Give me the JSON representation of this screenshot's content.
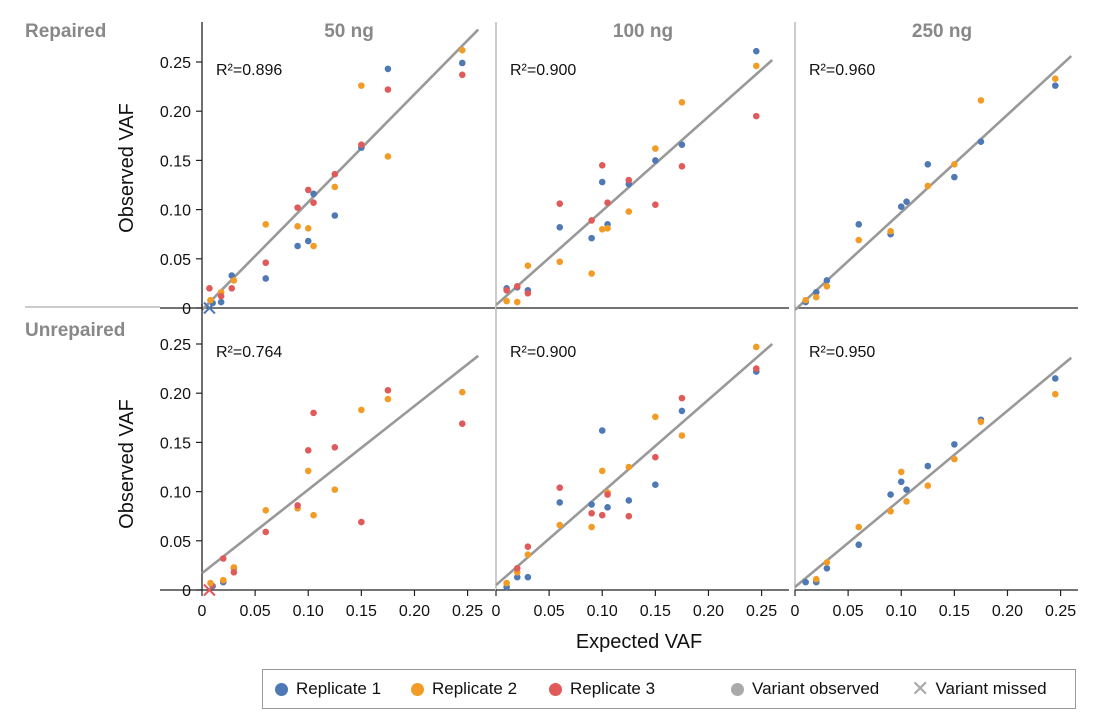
{
  "figure": {
    "row_labels": [
      "Repaired",
      "Unrepaired"
    ],
    "ylabel": "Observed VAF",
    "xlabel": "Expected VAF"
  },
  "colors": {
    "replicate_1": "#4e79b5",
    "replicate_2": "#f39c25",
    "replicate_3": "#e05a5a",
    "fit_line": "#999999",
    "row_label": "#888888",
    "panel_title": "#888888"
  },
  "legend": {
    "items": [
      {
        "label": "Replicate 1",
        "kind": "dot",
        "color": "#4e79b5",
        "icon": "circle-icon"
      },
      {
        "label": "Replicate 2",
        "kind": "dot",
        "color": "#f39c25",
        "icon": "circle-icon"
      },
      {
        "label": "Replicate 3",
        "kind": "dot",
        "color": "#e05a5a",
        "icon": "circle-icon"
      },
      {
        "label": "Variant observed",
        "kind": "dot",
        "color": "#aaaaaa",
        "icon": "circle-icon"
      },
      {
        "label": "Variant missed",
        "kind": "cross",
        "color": "#aaaaaa",
        "icon": "cross-icon"
      }
    ]
  },
  "chart_data": {
    "type": "scatter",
    "x_ticks": [
      "0",
      "0.05",
      "0.10",
      "0.15",
      "0.20",
      "0.25"
    ],
    "x_tick_values": [
      0,
      0.05,
      0.1,
      0.15,
      0.2,
      0.25
    ],
    "y_ticks": [
      "0",
      "0.05",
      "0.10",
      "0.15",
      "0.20",
      "0.25"
    ],
    "y_tick_values": [
      0,
      0.05,
      0.1,
      0.15,
      0.2,
      0.25
    ],
    "xlim": [
      0,
      0.265
    ],
    "ylim": [
      0,
      0.285
    ],
    "series_names": [
      "Replicate 1",
      "Replicate 2",
      "Replicate 3"
    ],
    "panels": [
      {
        "row": 0,
        "col": 0,
        "title": "50 ng",
        "r2_label": "R²=0.896",
        "fit": [
          [
            0,
            -0.002
          ],
          [
            0.26,
            0.283
          ]
        ],
        "missed": [
          {
            "x": 0.007,
            "y": 0.0,
            "color": "#4e79b5"
          }
        ],
        "points": [
          {
            "s": 0,
            "x": 0.01,
            "y": 0.005
          },
          {
            "s": 0,
            "x": 0.018,
            "y": 0.006
          },
          {
            "s": 0,
            "x": 0.028,
            "y": 0.033
          },
          {
            "s": 0,
            "x": 0.06,
            "y": 0.03
          },
          {
            "s": 0,
            "x": 0.09,
            "y": 0.063
          },
          {
            "s": 0,
            "x": 0.1,
            "y": 0.068
          },
          {
            "s": 0,
            "x": 0.105,
            "y": 0.116
          },
          {
            "s": 0,
            "x": 0.125,
            "y": 0.094
          },
          {
            "s": 0,
            "x": 0.15,
            "y": 0.163
          },
          {
            "s": 0,
            "x": 0.175,
            "y": 0.243
          },
          {
            "s": 0,
            "x": 0.245,
            "y": 0.249
          },
          {
            "s": 1,
            "x": 0.008,
            "y": 0.008
          },
          {
            "s": 1,
            "x": 0.018,
            "y": 0.016
          },
          {
            "s": 1,
            "x": 0.03,
            "y": 0.028
          },
          {
            "s": 1,
            "x": 0.06,
            "y": 0.085
          },
          {
            "s": 1,
            "x": 0.09,
            "y": 0.083
          },
          {
            "s": 1,
            "x": 0.1,
            "y": 0.081
          },
          {
            "s": 1,
            "x": 0.105,
            "y": 0.063
          },
          {
            "s": 1,
            "x": 0.125,
            "y": 0.123
          },
          {
            "s": 1,
            "x": 0.15,
            "y": 0.226
          },
          {
            "s": 1,
            "x": 0.175,
            "y": 0.154
          },
          {
            "s": 1,
            "x": 0.245,
            "y": 0.262
          },
          {
            "s": 2,
            "x": 0.007,
            "y": 0.02
          },
          {
            "s": 2,
            "x": 0.018,
            "y": 0.012
          },
          {
            "s": 2,
            "x": 0.028,
            "y": 0.02
          },
          {
            "s": 2,
            "x": 0.06,
            "y": 0.046
          },
          {
            "s": 2,
            "x": 0.09,
            "y": 0.102
          },
          {
            "s": 2,
            "x": 0.1,
            "y": 0.12
          },
          {
            "s": 2,
            "x": 0.105,
            "y": 0.107
          },
          {
            "s": 2,
            "x": 0.125,
            "y": 0.136
          },
          {
            "s": 2,
            "x": 0.15,
            "y": 0.166
          },
          {
            "s": 2,
            "x": 0.175,
            "y": 0.222
          },
          {
            "s": 2,
            "x": 0.245,
            "y": 0.237
          }
        ]
      },
      {
        "row": 0,
        "col": 1,
        "title": "100 ng",
        "r2_label": "R²=0.900",
        "fit": [
          [
            0,
            0.003
          ],
          [
            0.26,
            0.252
          ]
        ],
        "missed": [],
        "points": [
          {
            "s": 0,
            "x": 0.01,
            "y": 0.02
          },
          {
            "s": 0,
            "x": 0.02,
            "y": 0.021
          },
          {
            "s": 0,
            "x": 0.03,
            "y": 0.018
          },
          {
            "s": 0,
            "x": 0.06,
            "y": 0.082
          },
          {
            "s": 0,
            "x": 0.09,
            "y": 0.071
          },
          {
            "s": 0,
            "x": 0.1,
            "y": 0.128
          },
          {
            "s": 0,
            "x": 0.105,
            "y": 0.085
          },
          {
            "s": 0,
            "x": 0.125,
            "y": 0.126
          },
          {
            "s": 0,
            "x": 0.15,
            "y": 0.15
          },
          {
            "s": 0,
            "x": 0.175,
            "y": 0.166
          },
          {
            "s": 0,
            "x": 0.245,
            "y": 0.261
          },
          {
            "s": 1,
            "x": 0.01,
            "y": 0.007
          },
          {
            "s": 1,
            "x": 0.02,
            "y": 0.006
          },
          {
            "s": 1,
            "x": 0.03,
            "y": 0.043
          },
          {
            "s": 1,
            "x": 0.06,
            "y": 0.047
          },
          {
            "s": 1,
            "x": 0.09,
            "y": 0.035
          },
          {
            "s": 1,
            "x": 0.1,
            "y": 0.08
          },
          {
            "s": 1,
            "x": 0.105,
            "y": 0.081
          },
          {
            "s": 1,
            "x": 0.125,
            "y": 0.098
          },
          {
            "s": 1,
            "x": 0.15,
            "y": 0.162
          },
          {
            "s": 1,
            "x": 0.175,
            "y": 0.209
          },
          {
            "s": 1,
            "x": 0.245,
            "y": 0.246
          },
          {
            "s": 2,
            "x": 0.01,
            "y": 0.018
          },
          {
            "s": 2,
            "x": 0.02,
            "y": 0.022
          },
          {
            "s": 2,
            "x": 0.03,
            "y": 0.015
          },
          {
            "s": 2,
            "x": 0.06,
            "y": 0.106
          },
          {
            "s": 2,
            "x": 0.09,
            "y": 0.089
          },
          {
            "s": 2,
            "x": 0.1,
            "y": 0.145
          },
          {
            "s": 2,
            "x": 0.105,
            "y": 0.107
          },
          {
            "s": 2,
            "x": 0.125,
            "y": 0.13
          },
          {
            "s": 2,
            "x": 0.15,
            "y": 0.105
          },
          {
            "s": 2,
            "x": 0.175,
            "y": 0.144
          },
          {
            "s": 2,
            "x": 0.245,
            "y": 0.195
          }
        ]
      },
      {
        "row": 0,
        "col": 2,
        "title": "250 ng",
        "r2_label": "R²=0.960",
        "fit": [
          [
            0,
            -0.002
          ],
          [
            0.26,
            0.256
          ]
        ],
        "missed": [],
        "points": [
          {
            "s": 0,
            "x": 0.01,
            "y": 0.006
          },
          {
            "s": 0,
            "x": 0.02,
            "y": 0.016
          },
          {
            "s": 0,
            "x": 0.03,
            "y": 0.028
          },
          {
            "s": 0,
            "x": 0.06,
            "y": 0.085
          },
          {
            "s": 0,
            "x": 0.09,
            "y": 0.075
          },
          {
            "s": 0,
            "x": 0.1,
            "y": 0.103
          },
          {
            "s": 0,
            "x": 0.105,
            "y": 0.108
          },
          {
            "s": 0,
            "x": 0.125,
            "y": 0.146
          },
          {
            "s": 0,
            "x": 0.15,
            "y": 0.133
          },
          {
            "s": 0,
            "x": 0.175,
            "y": 0.169
          },
          {
            "s": 0,
            "x": 0.245,
            "y": 0.226
          },
          {
            "s": 1,
            "x": 0.01,
            "y": 0.008
          },
          {
            "s": 1,
            "x": 0.02,
            "y": 0.011
          },
          {
            "s": 1,
            "x": 0.03,
            "y": 0.022
          },
          {
            "s": 1,
            "x": 0.06,
            "y": 0.069
          },
          {
            "s": 1,
            "x": 0.09,
            "y": 0.078
          },
          {
            "s": 1,
            "x": 0.125,
            "y": 0.124
          },
          {
            "s": 1,
            "x": 0.15,
            "y": 0.146
          },
          {
            "s": 1,
            "x": 0.175,
            "y": 0.211
          },
          {
            "s": 1,
            "x": 0.245,
            "y": 0.233
          }
        ]
      },
      {
        "row": 1,
        "col": 0,
        "title": "",
        "r2_label": "R²=0.764",
        "fit": [
          [
            0,
            0.017
          ],
          [
            0.26,
            0.238
          ]
        ],
        "missed": [
          {
            "x": 0.007,
            "y": 0.0,
            "color": "#e05a5a"
          }
        ],
        "points": [
          {
            "s": 0,
            "x": 0.01,
            "y": 0.004
          },
          {
            "s": 0,
            "x": 0.02,
            "y": 0.008
          },
          {
            "s": 0,
            "x": 0.03,
            "y": 0.022
          },
          {
            "s": 1,
            "x": 0.008,
            "y": 0.007
          },
          {
            "s": 1,
            "x": 0.02,
            "y": 0.01
          },
          {
            "s": 1,
            "x": 0.03,
            "y": 0.023
          },
          {
            "s": 1,
            "x": 0.06,
            "y": 0.081
          },
          {
            "s": 1,
            "x": 0.09,
            "y": 0.083
          },
          {
            "s": 1,
            "x": 0.1,
            "y": 0.121
          },
          {
            "s": 1,
            "x": 0.105,
            "y": 0.076
          },
          {
            "s": 1,
            "x": 0.125,
            "y": 0.102
          },
          {
            "s": 1,
            "x": 0.15,
            "y": 0.183
          },
          {
            "s": 1,
            "x": 0.175,
            "y": 0.194
          },
          {
            "s": 1,
            "x": 0.245,
            "y": 0.201
          },
          {
            "s": 2,
            "x": 0.02,
            "y": 0.032
          },
          {
            "s": 2,
            "x": 0.03,
            "y": 0.018
          },
          {
            "s": 2,
            "x": 0.06,
            "y": 0.059
          },
          {
            "s": 2,
            "x": 0.09,
            "y": 0.086
          },
          {
            "s": 2,
            "x": 0.1,
            "y": 0.142
          },
          {
            "s": 2,
            "x": 0.105,
            "y": 0.18
          },
          {
            "s": 2,
            "x": 0.125,
            "y": 0.145
          },
          {
            "s": 2,
            "x": 0.15,
            "y": 0.069
          },
          {
            "s": 2,
            "x": 0.175,
            "y": 0.203
          },
          {
            "s": 2,
            "x": 0.245,
            "y": 0.169
          }
        ]
      },
      {
        "row": 1,
        "col": 1,
        "title": "",
        "r2_label": "R²=0.900",
        "fit": [
          [
            0,
            0.005
          ],
          [
            0.26,
            0.25
          ]
        ],
        "missed": [],
        "points": [
          {
            "s": 0,
            "x": 0.01,
            "y": 0.003
          },
          {
            "s": 0,
            "x": 0.02,
            "y": 0.013
          },
          {
            "s": 0,
            "x": 0.03,
            "y": 0.013
          },
          {
            "s": 0,
            "x": 0.06,
            "y": 0.089
          },
          {
            "s": 0,
            "x": 0.09,
            "y": 0.087
          },
          {
            "s": 0,
            "x": 0.1,
            "y": 0.162
          },
          {
            "s": 0,
            "x": 0.105,
            "y": 0.084
          },
          {
            "s": 0,
            "x": 0.125,
            "y": 0.091
          },
          {
            "s": 0,
            "x": 0.15,
            "y": 0.107
          },
          {
            "s": 0,
            "x": 0.175,
            "y": 0.182
          },
          {
            "s": 0,
            "x": 0.245,
            "y": 0.222
          },
          {
            "s": 1,
            "x": 0.01,
            "y": 0.007
          },
          {
            "s": 1,
            "x": 0.02,
            "y": 0.018
          },
          {
            "s": 1,
            "x": 0.03,
            "y": 0.036
          },
          {
            "s": 1,
            "x": 0.06,
            "y": 0.066
          },
          {
            "s": 1,
            "x": 0.09,
            "y": 0.064
          },
          {
            "s": 1,
            "x": 0.1,
            "y": 0.121
          },
          {
            "s": 1,
            "x": 0.105,
            "y": 0.099
          },
          {
            "s": 1,
            "x": 0.125,
            "y": 0.125
          },
          {
            "s": 1,
            "x": 0.15,
            "y": 0.176
          },
          {
            "s": 1,
            "x": 0.175,
            "y": 0.157
          },
          {
            "s": 1,
            "x": 0.245,
            "y": 0.247
          },
          {
            "s": 2,
            "x": 0.02,
            "y": 0.022
          },
          {
            "s": 2,
            "x": 0.03,
            "y": 0.044
          },
          {
            "s": 2,
            "x": 0.06,
            "y": 0.104
          },
          {
            "s": 2,
            "x": 0.09,
            "y": 0.078
          },
          {
            "s": 2,
            "x": 0.1,
            "y": 0.076
          },
          {
            "s": 2,
            "x": 0.105,
            "y": 0.097
          },
          {
            "s": 2,
            "x": 0.125,
            "y": 0.075
          },
          {
            "s": 2,
            "x": 0.15,
            "y": 0.135
          },
          {
            "s": 2,
            "x": 0.175,
            "y": 0.195
          },
          {
            "s": 2,
            "x": 0.245,
            "y": 0.225
          }
        ]
      },
      {
        "row": 1,
        "col": 2,
        "title": "",
        "r2_label": "R²=0.950",
        "fit": [
          [
            0,
            0.003
          ],
          [
            0.26,
            0.236
          ]
        ],
        "missed": [],
        "points": [
          {
            "s": 0,
            "x": 0.01,
            "y": 0.008
          },
          {
            "s": 0,
            "x": 0.02,
            "y": 0.008
          },
          {
            "s": 0,
            "x": 0.03,
            "y": 0.022
          },
          {
            "s": 0,
            "x": 0.06,
            "y": 0.046
          },
          {
            "s": 0,
            "x": 0.09,
            "y": 0.097
          },
          {
            "s": 0,
            "x": 0.1,
            "y": 0.11
          },
          {
            "s": 0,
            "x": 0.105,
            "y": 0.102
          },
          {
            "s": 0,
            "x": 0.125,
            "y": 0.126
          },
          {
            "s": 0,
            "x": 0.15,
            "y": 0.148
          },
          {
            "s": 0,
            "x": 0.175,
            "y": 0.173
          },
          {
            "s": 0,
            "x": 0.245,
            "y": 0.215
          },
          {
            "s": 1,
            "x": 0.02,
            "y": 0.011
          },
          {
            "s": 1,
            "x": 0.03,
            "y": 0.028
          },
          {
            "s": 1,
            "x": 0.06,
            "y": 0.064
          },
          {
            "s": 1,
            "x": 0.09,
            "y": 0.08
          },
          {
            "s": 1,
            "x": 0.1,
            "y": 0.12
          },
          {
            "s": 1,
            "x": 0.105,
            "y": 0.09
          },
          {
            "s": 1,
            "x": 0.125,
            "y": 0.106
          },
          {
            "s": 1,
            "x": 0.15,
            "y": 0.133
          },
          {
            "s": 1,
            "x": 0.175,
            "y": 0.171
          },
          {
            "s": 1,
            "x": 0.245,
            "y": 0.199
          }
        ]
      }
    ]
  }
}
